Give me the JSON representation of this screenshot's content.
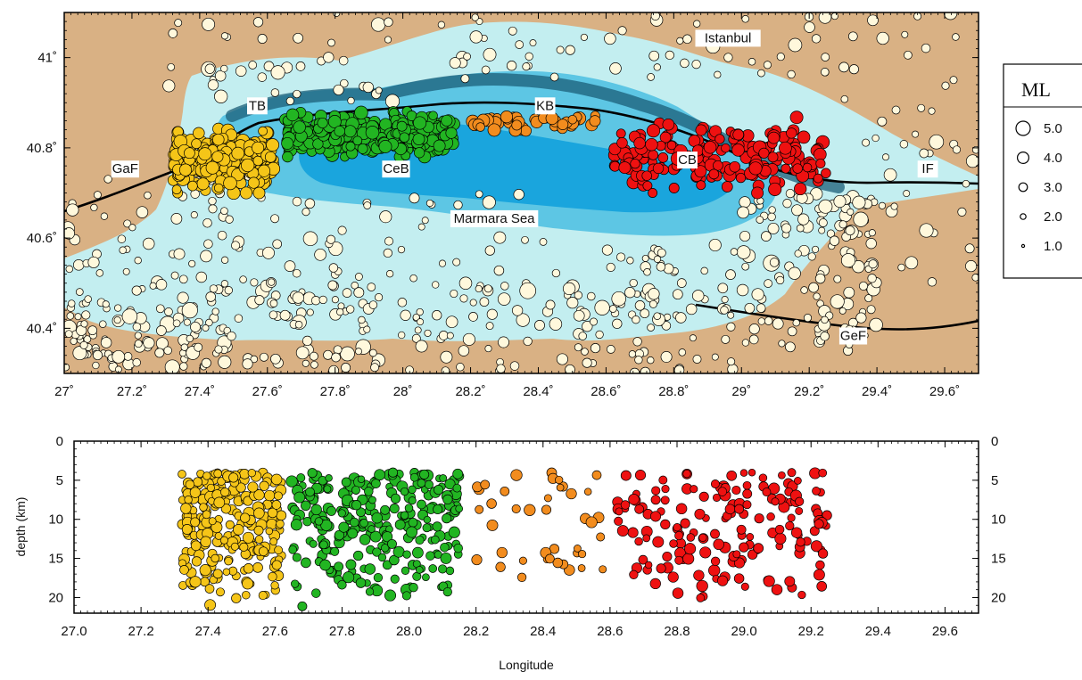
{
  "map": {
    "lon_range": [
      27.0,
      29.7
    ],
    "lat_range": [
      40.3,
      41.1
    ],
    "x_ticks": [
      "27˚",
      "27.2˚",
      "27.4˚",
      "27.6˚",
      "27.8˚",
      "28˚",
      "28.2˚",
      "28.4˚",
      "28.6˚",
      "28.8˚",
      "29˚",
      "29.2˚",
      "29.4˚",
      "29.6˚"
    ],
    "x_tick_values": [
      27.0,
      27.2,
      27.4,
      27.6,
      27.8,
      28.0,
      28.2,
      28.4,
      28.6,
      28.8,
      29.0,
      29.2,
      29.4,
      29.6
    ],
    "y_ticks": [
      "41˚",
      "40.8˚",
      "40.6˚",
      "40.4˚"
    ],
    "y_tick_values": [
      41.0,
      40.8,
      40.6,
      40.4
    ],
    "places": [
      {
        "label": "Istanbul",
        "lon": 28.96,
        "lat": 41.04
      },
      {
        "label": "TB",
        "lon": 27.57,
        "lat": 40.89
      },
      {
        "label": "KB",
        "lon": 28.42,
        "lat": 40.89
      },
      {
        "label": "CeB",
        "lon": 27.98,
        "lat": 40.75
      },
      {
        "label": "CB",
        "lon": 28.84,
        "lat": 40.77
      },
      {
        "label": "Marmara Sea",
        "lon": 28.27,
        "lat": 40.64
      },
      {
        "label": "GaF",
        "lon": 27.18,
        "lat": 40.75
      },
      {
        "label": "IF",
        "lon": 29.55,
        "lat": 40.75
      },
      {
        "label": "GeF",
        "lon": 29.33,
        "lat": 40.38
      }
    ],
    "colors": {
      "land": "#d9b184",
      "shelf": "#c3eef0",
      "mid_sea": "#5dc6e4",
      "deep_sea": "#1aa5dd",
      "trough": "#1b5e78",
      "background_events": "#fff8dc",
      "cluster_TB": "#f5c518",
      "cluster_CeB": "#22b522",
      "cluster_KB": "#f28c1e",
      "cluster_CB": "#ee1111"
    }
  },
  "section": {
    "lon_range": [
      27.0,
      29.7
    ],
    "depth_range": [
      0,
      22
    ],
    "x_ticks": [
      "27.0",
      "27.2",
      "27.4",
      "27.6",
      "27.8",
      "28.0",
      "28.2",
      "28.4",
      "28.6",
      "28.8",
      "29.0",
      "29.2",
      "29.4",
      "29.6"
    ],
    "x_tick_values": [
      27.0,
      27.2,
      27.4,
      27.6,
      27.8,
      28.0,
      28.2,
      28.4,
      28.6,
      28.8,
      29.0,
      29.2,
      29.4,
      29.6
    ],
    "y_ticks": [
      "0",
      "5",
      "10",
      "15",
      "20"
    ],
    "y_tick_values": [
      0,
      5,
      10,
      15,
      20
    ],
    "ylabel": "depth (km)",
    "xlabel": "Longitude"
  },
  "legend": {
    "title": "ML",
    "entries": [
      {
        "label": "5.0",
        "mag": 5.0
      },
      {
        "label": "4.0",
        "mag": 4.0
      },
      {
        "label": "3.0",
        "mag": 3.0
      },
      {
        "label": "2.0",
        "mag": 2.0
      },
      {
        "label": "1.0",
        "mag": 1.0
      }
    ]
  }
}
